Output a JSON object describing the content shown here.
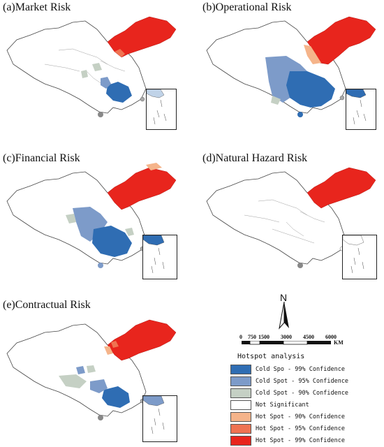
{
  "panels": [
    {
      "id": "a",
      "title": "(a)Market Risk"
    },
    {
      "id": "b",
      "title": "(b)Operational Risk"
    },
    {
      "id": "c",
      "title": "(c)Financial Risk"
    },
    {
      "id": "d",
      "title": "(d)Natural Hazard Risk"
    },
    {
      "id": "e",
      "title": "(e)Contractual Risk"
    }
  ],
  "north_label": "N",
  "scale": {
    "ticks": [
      "0",
      "750",
      "1500",
      "3000",
      "4500",
      "6000"
    ],
    "unit": "KM"
  },
  "legend": {
    "title": "Hotspot analysis",
    "items": [
      {
        "label": "Cold Spo - 99% Confidence",
        "color": "#2f6db3"
      },
      {
        "label": "Cold Spot - 95% Confidence",
        "color": "#7d9bc9"
      },
      {
        "label": "Cold Spot - 90% Confidence",
        "color": "#c5d0c4"
      },
      {
        "label": "Not Significant",
        "color": "#ffffff"
      },
      {
        "label": "Hot Spot - 90% Confidence",
        "color": "#f5b48a"
      },
      {
        "label": "Hot Spot - 95% Confidence",
        "color": "#ef7352"
      },
      {
        "label": "Hot Spot - 99% Confidence",
        "color": "#e8251d"
      }
    ]
  }
}
